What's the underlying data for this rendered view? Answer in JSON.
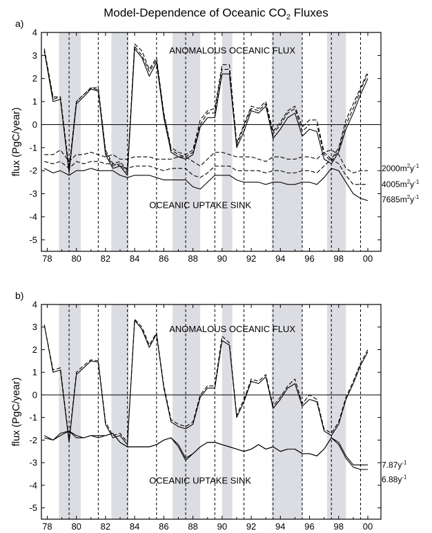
{
  "figure": {
    "title_main": "Model-Dependence of Oceanic CO",
    "title_sub": "2",
    "title_tail": " Fluxes"
  },
  "chart_data": [
    {
      "type": "line",
      "panel": "a)",
      "ylabel": "flux (PgC/year)",
      "xlabel": "",
      "xlim": [
        1977.6,
        2000.9
      ],
      "ylim": [
        -5.5,
        4
      ],
      "x_ticks": [
        1978,
        1980,
        1982,
        1984,
        1986,
        1988,
        1990,
        1992,
        1994,
        1996,
        1998,
        2000
      ],
      "x_tick_labels": [
        "78",
        "80",
        "82",
        "84",
        "86",
        "88",
        "90",
        "92",
        "94",
        "96",
        "98",
        "00"
      ],
      "y_ticks": [
        -5,
        -4,
        -3,
        -2,
        -1,
        0,
        1,
        2,
        3,
        4
      ],
      "y_tick_labels": [
        "-5",
        "-4",
        "-3",
        "-2",
        "-1",
        "0",
        "1",
        "2",
        "3",
        "4"
      ],
      "zero_line": 0,
      "shaded_periods": [
        [
          1978.8,
          1980.3
        ],
        [
          1982.4,
          1983.6
        ],
        [
          1986.6,
          1988.5
        ],
        [
          1990.0,
          1990.7
        ],
        [
          1993.4,
          1995.5
        ],
        [
          1997.2,
          1998.5
        ]
      ],
      "dashed_verticals": [
        1979.5,
        1981.5,
        1983.5,
        1985.5,
        1987.5,
        1989.5,
        1991.5,
        1993.5,
        1995.5,
        1997.5,
        1999.5
      ],
      "annotations": [
        {
          "text": "ANOMALOUS OCEANIC FLUX",
          "x": 1990.7,
          "y": 3.2
        },
        {
          "text": "OCEANIC UPTAKE SINK",
          "x": 1988.5,
          "y": -3.5
        }
      ],
      "end_labels": [
        {
          "base": "2000m",
          "sup1": "2",
          "mid": "y",
          "sup2": "-1",
          "y": -1.9
        },
        {
          "base": "4005m",
          "sup1": "2",
          "mid": "y",
          "sup2": "-1",
          "y": -2.6
        },
        {
          "base": "7685m",
          "sup1": "2",
          "mid": "y",
          "sup2": "-1",
          "y": -3.25
        }
      ],
      "x": [
        1977.8,
        1978.4,
        1978.9,
        1979.5,
        1980.0,
        1980.5,
        1981.0,
        1981.5,
        1982.0,
        1982.5,
        1983.0,
        1983.5,
        1984.0,
        1984.5,
        1985.0,
        1985.5,
        1986.0,
        1986.5,
        1987.0,
        1987.5,
        1988.0,
        1988.5,
        1989.0,
        1989.5,
        1990.0,
        1990.5,
        1991.0,
        1991.5,
        1992.0,
        1992.5,
        1993.0,
        1993.5,
        1994.0,
        1994.5,
        1995.0,
        1995.5,
        1996.0,
        1996.5,
        1997.0,
        1997.5,
        1998.0,
        1998.5,
        1999.0,
        1999.5,
        2000.0
      ],
      "series": [
        {
          "style": "solid",
          "group": "anomaly",
          "values": [
            3.2,
            1.0,
            1.1,
            -2.1,
            0.9,
            1.2,
            1.55,
            1.45,
            -1.3,
            -1.9,
            -1.8,
            -2.2,
            3.3,
            2.9,
            2.1,
            2.7,
            0.3,
            -1.2,
            -1.4,
            -1.5,
            -1.3,
            -0.1,
            0.3,
            0.3,
            2.2,
            2.2,
            -1.0,
            -0.3,
            0.6,
            0.5,
            0.8,
            -0.6,
            -0.2,
            0.3,
            0.5,
            -0.5,
            -0.2,
            -0.3,
            -1.5,
            -1.7,
            -1.2,
            -0.2,
            0.5,
            1.3,
            2.0
          ]
        },
        {
          "style": "dashed",
          "group": "anomaly",
          "values": [
            3.2,
            1.1,
            1.2,
            -2.0,
            1.0,
            1.3,
            1.6,
            1.5,
            -1.2,
            -1.8,
            -1.7,
            -2.1,
            3.4,
            3.0,
            2.3,
            2.8,
            0.4,
            -1.1,
            -1.3,
            -1.4,
            -1.2,
            0.0,
            0.5,
            0.5,
            2.4,
            2.4,
            -0.9,
            -0.1,
            0.7,
            0.6,
            0.9,
            -0.4,
            0.0,
            0.5,
            0.7,
            -0.3,
            0.0,
            0.0,
            -1.3,
            -1.6,
            -1.1,
            0.0,
            0.7,
            1.5,
            2.2
          ]
        },
        {
          "style": "dashed",
          "group": "anomaly",
          "values": [
            3.3,
            1.2,
            1.2,
            -1.9,
            1.0,
            1.3,
            1.6,
            1.6,
            -1.1,
            -1.7,
            -1.6,
            -2.0,
            3.5,
            3.2,
            2.4,
            2.9,
            0.5,
            -1.0,
            -1.2,
            -1.3,
            -1.1,
            0.2,
            0.6,
            0.7,
            2.6,
            2.6,
            -0.8,
            0.0,
            0.8,
            0.7,
            1.0,
            -0.3,
            0.1,
            0.6,
            0.8,
            -0.1,
            0.2,
            0.2,
            -1.2,
            -1.5,
            -1.0,
            0.2,
            0.9,
            1.6,
            2.3
          ]
        },
        {
          "style": "solid",
          "group": "sink",
          "name": "7685m2y-1",
          "values": [
            -1.9,
            -2.1,
            -2.0,
            -2.2,
            -2.0,
            -2.0,
            -1.9,
            -2.0,
            -2.0,
            -2.0,
            -2.2,
            -2.3,
            -2.2,
            -2.2,
            -2.2,
            -2.3,
            -2.4,
            -2.4,
            -2.4,
            -2.4,
            -2.7,
            -2.8,
            -2.5,
            -2.2,
            -2.2,
            -2.2,
            -2.4,
            -2.5,
            -2.5,
            -2.5,
            -2.6,
            -2.5,
            -2.5,
            -2.6,
            -2.6,
            -2.5,
            -2.5,
            -2.6,
            -2.3,
            -1.9,
            -2.0,
            -2.5,
            -3.0,
            -3.2,
            -3.3
          ]
        },
        {
          "style": "dashed",
          "group": "sink",
          "name": "4005m2y-1",
          "values": [
            -1.6,
            -1.7,
            -1.6,
            -1.9,
            -1.6,
            -1.7,
            -1.6,
            -1.6,
            -1.7,
            -1.7,
            -1.8,
            -1.9,
            -1.8,
            -1.8,
            -1.8,
            -1.9,
            -2.0,
            -1.9,
            -1.9,
            -1.9,
            -2.2,
            -2.3,
            -2.1,
            -1.8,
            -1.8,
            -1.8,
            -2.0,
            -2.0,
            -2.0,
            -2.0,
            -2.1,
            -2.0,
            -2.0,
            -2.1,
            -2.1,
            -2.0,
            -2.0,
            -2.1,
            -1.8,
            -1.5,
            -1.7,
            -2.2,
            -2.6,
            -2.6,
            -2.6
          ]
        },
        {
          "style": "dashed",
          "group": "sink",
          "name": "2000m2y-1",
          "values": [
            -1.3,
            -1.3,
            -1.1,
            -1.6,
            -1.3,
            -1.3,
            -1.2,
            -1.3,
            -1.4,
            -1.3,
            -1.5,
            -1.5,
            -1.4,
            -1.4,
            -1.4,
            -1.5,
            -1.5,
            -1.5,
            -1.4,
            -1.4,
            -1.6,
            -1.8,
            -1.5,
            -1.2,
            -1.2,
            -1.3,
            -1.4,
            -1.4,
            -1.4,
            -1.5,
            -1.6,
            -1.4,
            -1.4,
            -1.5,
            -1.5,
            -1.4,
            -1.4,
            -1.5,
            -1.2,
            -1.1,
            -1.3,
            -1.9,
            -2.1,
            -2.0,
            -2.0
          ]
        }
      ]
    },
    {
      "type": "line",
      "panel": "b)",
      "ylabel": "flux (PgC/year)",
      "xlabel": "",
      "xlim": [
        1977.6,
        2000.9
      ],
      "ylim": [
        -5.5,
        4
      ],
      "x_ticks": [
        1978,
        1980,
        1982,
        1984,
        1986,
        1988,
        1990,
        1992,
        1994,
        1996,
        1998,
        2000
      ],
      "x_tick_labels": [
        "78",
        "80",
        "82",
        "84",
        "86",
        "88",
        "90",
        "92",
        "94",
        "96",
        "98",
        "00"
      ],
      "y_ticks": [
        -5,
        -4,
        -3,
        -2,
        -1,
        0,
        1,
        2,
        3,
        4
      ],
      "y_tick_labels": [
        "-5",
        "-4",
        "-3",
        "-2",
        "-1",
        "0",
        "1",
        "2",
        "3",
        "4"
      ],
      "zero_line": 0,
      "shaded_periods": [
        [
          1978.8,
          1980.3
        ],
        [
          1982.4,
          1983.6
        ],
        [
          1986.6,
          1988.5
        ],
        [
          1990.0,
          1990.7
        ],
        [
          1993.4,
          1995.5
        ],
        [
          1997.2,
          1998.5
        ]
      ],
      "dashed_verticals": [
        1979.5,
        1981.5,
        1983.5,
        1985.5,
        1987.5,
        1989.5,
        1991.5,
        1993.5,
        1995.5,
        1997.5,
        1999.5
      ],
      "annotations": [
        {
          "text": "ANOMALOUS OCEANIC FLUX",
          "x": 1990.7,
          "y": 2.9
        },
        {
          "text": "OCEANIC UPTAKE SINK",
          "x": 1988.5,
          "y": -3.8
        }
      ],
      "end_labels": [
        {
          "base": "7.87y",
          "sup1": "",
          "mid": "",
          "sup2": "-1",
          "y": -3.1
        },
        {
          "base": "6.88y",
          "sup1": "",
          "mid": "",
          "sup2": "-1",
          "y": -3.75
        }
      ],
      "x": [
        1977.8,
        1978.4,
        1978.9,
        1979.5,
        1980.0,
        1980.5,
        1981.0,
        1981.5,
        1982.0,
        1982.5,
        1983.0,
        1983.5,
        1984.0,
        1984.5,
        1985.0,
        1985.5,
        1986.0,
        1986.5,
        1987.0,
        1987.5,
        1988.0,
        1988.5,
        1989.0,
        1989.5,
        1990.0,
        1990.5,
        1991.0,
        1991.5,
        1992.0,
        1992.5,
        1993.0,
        1993.5,
        1994.0,
        1994.5,
        1995.0,
        1995.5,
        1996.0,
        1996.5,
        1997.0,
        1997.5,
        1998.0,
        1998.5,
        1999.0,
        1999.5,
        2000.0
      ],
      "series": [
        {
          "style": "solid",
          "group": "anomaly",
          "values": [
            3.1,
            1.0,
            1.1,
            -2.1,
            0.9,
            1.2,
            1.5,
            1.45,
            -1.3,
            -1.9,
            -1.8,
            -2.2,
            3.3,
            2.9,
            2.1,
            2.7,
            0.3,
            -1.2,
            -1.4,
            -1.5,
            -1.3,
            -0.1,
            0.3,
            0.3,
            2.4,
            2.2,
            -1.0,
            -0.3,
            0.6,
            0.5,
            0.8,
            -0.6,
            -0.2,
            0.3,
            0.5,
            -0.5,
            -0.2,
            -0.3,
            -1.6,
            -1.8,
            -1.3,
            -0.2,
            0.5,
            1.3,
            1.9
          ]
        },
        {
          "style": "dashed",
          "group": "anomaly",
          "values": [
            3.1,
            1.1,
            1.2,
            -2.0,
            1.0,
            1.3,
            1.55,
            1.5,
            -1.2,
            -1.8,
            -1.7,
            -2.1,
            3.35,
            3.0,
            2.2,
            2.75,
            0.4,
            -1.1,
            -1.3,
            -1.4,
            -1.2,
            0.0,
            0.4,
            0.4,
            2.6,
            2.3,
            -0.9,
            -0.2,
            0.7,
            0.6,
            0.9,
            -0.5,
            -0.1,
            0.4,
            0.7,
            -0.4,
            0.0,
            -0.2,
            -1.5,
            -1.7,
            -1.2,
            -0.1,
            0.6,
            1.4,
            2.0
          ]
        },
        {
          "style": "solid",
          "group": "sink",
          "name": "7.87y-1",
          "values": [
            -1.9,
            -2.0,
            -1.7,
            -1.6,
            -1.9,
            -1.9,
            -1.8,
            -1.8,
            -1.8,
            -1.7,
            -2.1,
            -2.3,
            -2.3,
            -2.3,
            -2.3,
            -2.2,
            -2.0,
            -1.9,
            -2.2,
            -2.8,
            -2.6,
            -2.3,
            -2.1,
            -2.1,
            -2.2,
            -2.3,
            -2.4,
            -2.5,
            -2.4,
            -2.2,
            -2.4,
            -2.3,
            -2.5,
            -2.4,
            -2.4,
            -2.6,
            -2.6,
            -2.7,
            -2.4,
            -1.9,
            -2.1,
            -2.7,
            -3.1,
            -3.1,
            -3.1
          ]
        },
        {
          "style": "solid",
          "group": "sink",
          "name": "6.88y-1",
          "values": [
            -1.8,
            -2.0,
            -1.8,
            -1.6,
            -1.8,
            -1.9,
            -1.8,
            -1.9,
            -1.8,
            -1.7,
            -2.1,
            -2.3,
            -2.3,
            -2.3,
            -2.3,
            -2.2,
            -2.0,
            -1.9,
            -2.3,
            -2.9,
            -2.6,
            -2.3,
            -2.1,
            -2.1,
            -2.2,
            -2.3,
            -2.4,
            -2.5,
            -2.4,
            -2.2,
            -2.4,
            -2.3,
            -2.5,
            -2.4,
            -2.4,
            -2.6,
            -2.6,
            -2.7,
            -2.4,
            -1.9,
            -2.2,
            -2.8,
            -3.2,
            -3.3,
            -3.3
          ]
        }
      ]
    }
  ]
}
